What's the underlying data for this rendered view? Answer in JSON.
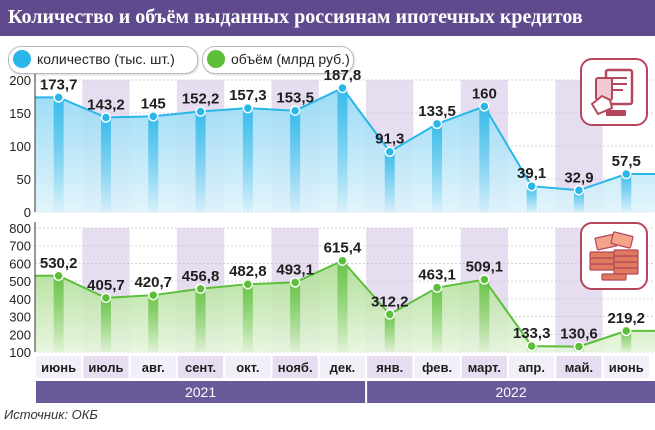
{
  "title": "Количество и объём выданных россиянам ипотечных кредитов",
  "legend": {
    "count_label": "количество (тыс. шт.)",
    "volume_label": "объём (млрд руб.)"
  },
  "colors": {
    "title_bg": "#5e4a8c",
    "count_series": "#29b6e8",
    "volume_series": "#5cbf3a",
    "month_band": "#e6def0",
    "year_bar": "#6a5a9a",
    "icon_accent": "#b5475c"
  },
  "icons": {
    "count_panel": "mortgage-document-icon",
    "volume_panel": "money-stack-icon"
  },
  "source": "Источник: ОКБ",
  "chart_data": [
    {
      "type": "area",
      "categories": [
        "июнь",
        "июль",
        "авг.",
        "сент.",
        "окт.",
        "нояб.",
        "дек.",
        "янв.",
        "фев.",
        "март.",
        "апр.",
        "май.",
        "июнь"
      ],
      "series": [
        {
          "name": "количество (тыс. шт.)",
          "values": [
            173.7,
            143.2,
            145,
            152.2,
            157.3,
            153.5,
            187.8,
            91.3,
            133.5,
            160,
            39.1,
            32.9,
            57.5
          ]
        }
      ],
      "value_labels": [
        "173,7",
        "143,2",
        "145",
        "152,2",
        "157,3",
        "153,5",
        "187,8",
        "91,3",
        "133,5",
        "160",
        "39,1",
        "32,9",
        "57,5"
      ],
      "ylim": [
        0,
        200
      ],
      "yticks": [
        0,
        50,
        100,
        150,
        200
      ],
      "grid": true
    },
    {
      "type": "area",
      "categories": [
        "июнь",
        "июль",
        "авг.",
        "сент.",
        "окт.",
        "нояб.",
        "дек.",
        "янв.",
        "фев.",
        "март.",
        "апр.",
        "май.",
        "июнь"
      ],
      "series": [
        {
          "name": "объём (млрд руб.)",
          "values": [
            530.2,
            405.7,
            420.7,
            456.8,
            482.8,
            493.1,
            615.4,
            312.2,
            463.1,
            509.1,
            133.3,
            130.6,
            219.2
          ]
        }
      ],
      "value_labels": [
        "530,2",
        "405,7",
        "420,7",
        "456,8",
        "482,8",
        "493,1",
        "615,4",
        "312,2",
        "463,1",
        "509,1",
        "133,3",
        "130,6",
        "219,2"
      ],
      "ylim": [
        100,
        800
      ],
      "yticks": [
        100,
        200,
        300,
        400,
        500,
        600,
        700,
        800
      ],
      "grid": true
    }
  ],
  "x_axis": {
    "months": [
      "июнь",
      "июль",
      "авг.",
      "сент.",
      "окт.",
      "нояб.",
      "дек.",
      "янв.",
      "фев.",
      "март.",
      "апр.",
      "май.",
      "июнь"
    ],
    "years": [
      {
        "label": "2021",
        "from": 0,
        "to": 6
      },
      {
        "label": "2022",
        "from": 7,
        "to": 12
      }
    ]
  }
}
